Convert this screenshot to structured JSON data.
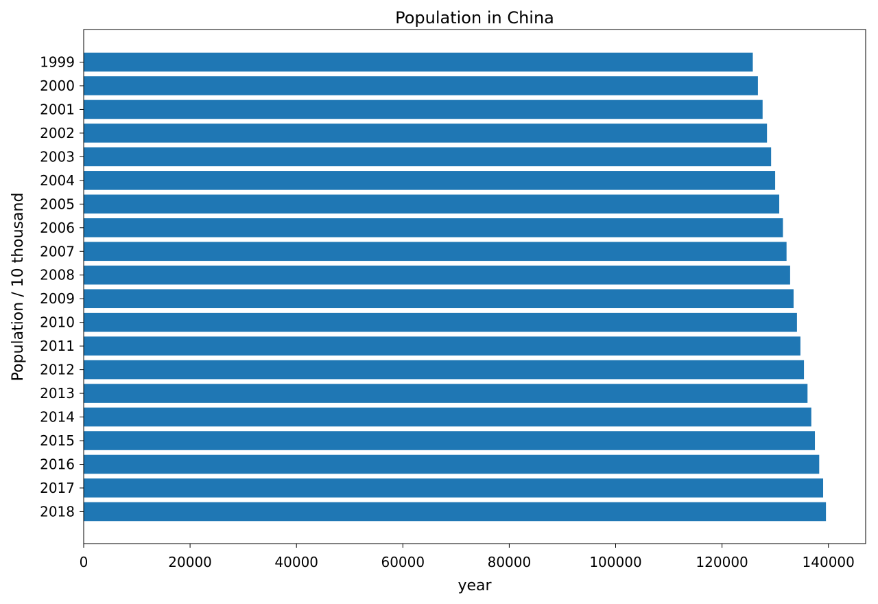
{
  "chart_data": {
    "type": "bar",
    "orientation": "horizontal",
    "title": "Population in China",
    "xlabel": "year",
    "ylabel": "Population / 10 thousand",
    "categories": [
      "1999",
      "2000",
      "2001",
      "2002",
      "2003",
      "2004",
      "2005",
      "2006",
      "2007",
      "2008",
      "2009",
      "2010",
      "2011",
      "2012",
      "2013",
      "2014",
      "2015",
      "2016",
      "2017",
      "2018"
    ],
    "values": [
      125786,
      126743,
      127627,
      128453,
      129227,
      129988,
      130756,
      131448,
      132129,
      132802,
      133450,
      134091,
      134735,
      135404,
      136072,
      136782,
      137462,
      138271,
      139008,
      139538
    ],
    "xlim": [
      0,
      147000
    ],
    "xticks": [
      0,
      20000,
      40000,
      60000,
      80000,
      100000,
      120000,
      140000
    ],
    "grid": false,
    "bar_color": "#1f77b4"
  }
}
